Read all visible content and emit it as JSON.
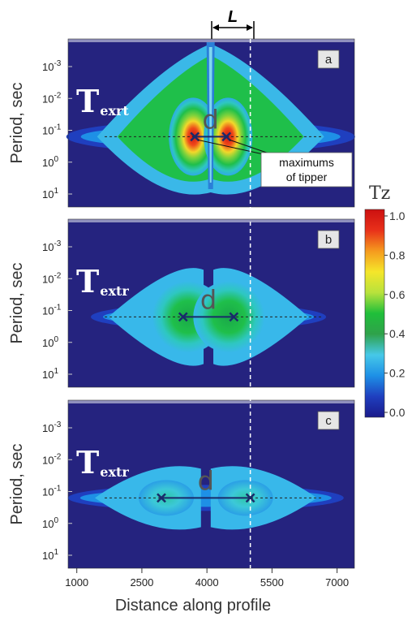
{
  "chart_data": {
    "type": "heatmap",
    "ylabel": "Period, sec",
    "xlabel": "Distance along profile",
    "x_ticks": [
      "1000",
      "2500",
      "4000",
      "5500",
      "7000"
    ],
    "x_tick_values": [
      1000,
      2500,
      4000,
      5500,
      7000
    ],
    "xlim": [
      800,
      7400
    ],
    "y_ticks": [
      {
        "base": "10",
        "exp": "-3",
        "value": -3
      },
      {
        "base": "10",
        "exp": "-2",
        "value": -2
      },
      {
        "base": "10",
        "exp": "-1",
        "value": -1
      },
      {
        "base": "10",
        "exp": "0",
        "value": 0
      },
      {
        "base": "10",
        "exp": "1",
        "value": 1
      }
    ],
    "y_scale": "log",
    "dimension_label": "L",
    "dashed_line_x": 5000,
    "panels": [
      {
        "id": "a",
        "label": "a",
        "t_main": "T",
        "t_sub": "exrt",
        "d_label": "d",
        "annotation_line1": "maximums",
        "annotation_line2": "of tipper",
        "maxima": [
          {
            "x": 3720,
            "log_period": -0.8
          },
          {
            "x": 4450,
            "log_period": -0.8
          }
        ],
        "peak": 1.0
      },
      {
        "id": "b",
        "label": "b",
        "t_main": "T",
        "t_sub": "extr",
        "d_label": "d",
        "maxima": [
          {
            "x": 3450,
            "log_period": -0.8
          },
          {
            "x": 4620,
            "log_period": -0.8
          }
        ],
        "peak": 0.55
      },
      {
        "id": "c",
        "label": "c",
        "t_main": "T",
        "t_sub": "extr",
        "d_label": "d",
        "maxima": [
          {
            "x": 2950,
            "log_period": -0.8
          },
          {
            "x": 5000,
            "log_period": -0.8
          }
        ],
        "peak": 0.38
      }
    ],
    "colorbar": {
      "title": "Tz",
      "ticks": [
        "1.0",
        "0.8",
        "0.6",
        "0.4",
        "0.2",
        "0.0"
      ],
      "tick_values": [
        1.0,
        0.8,
        0.6,
        0.4,
        0.2,
        0.0
      ],
      "colors": [
        "#1a1a8a",
        "#1f3fbf",
        "#1e90e6",
        "#46c8e8",
        "#2fa24a",
        "#1fbf3a",
        "#b8e23c",
        "#f5e62a",
        "#f59a1e",
        "#e8301a",
        "#cc1010"
      ]
    }
  }
}
